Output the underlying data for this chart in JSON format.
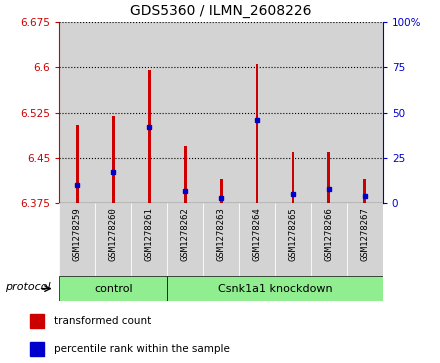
{
  "title": "GDS5360 / ILMN_2608226",
  "samples": [
    "GSM1278259",
    "GSM1278260",
    "GSM1278261",
    "GSM1278262",
    "GSM1278263",
    "GSM1278264",
    "GSM1278265",
    "GSM1278266",
    "GSM1278267"
  ],
  "transformed_count": [
    6.505,
    6.52,
    6.595,
    6.47,
    6.415,
    6.605,
    6.46,
    6.46,
    6.415
  ],
  "percentile_rank": [
    10,
    17,
    42,
    7,
    3,
    46,
    5,
    8,
    4
  ],
  "bar_bottom": 6.375,
  "ylim": [
    6.375,
    6.675
  ],
  "yticks": [
    6.375,
    6.45,
    6.525,
    6.6,
    6.675
  ],
  "right_yticks": [
    0,
    25,
    50,
    75,
    100
  ],
  "bar_color": "#cc0000",
  "dot_color": "#0000cc",
  "left_tick_color": "#cc0000",
  "right_tick_color": "#0000cc",
  "bar_width": 0.08,
  "protocol_groups": [
    {
      "label": "control",
      "samples_count": 3,
      "color": "#90ee90"
    },
    {
      "label": "Csnk1a1 knockdown",
      "samples_count": 6,
      "color": "#90ee90"
    }
  ],
  "protocol_label": "protocol",
  "grid_linestyle": "dotted",
  "background_color": "#ffffff",
  "plot_bg_color": "#ffffff",
  "sample_bg_color": "#d3d3d3",
  "legend_items": [
    {
      "label": "transformed count",
      "color": "#cc0000"
    },
    {
      "label": "percentile rank within the sample",
      "color": "#0000cc"
    }
  ],
  "title_fontsize": 10,
  "tick_fontsize": 7.5,
  "sample_fontsize": 6.5
}
